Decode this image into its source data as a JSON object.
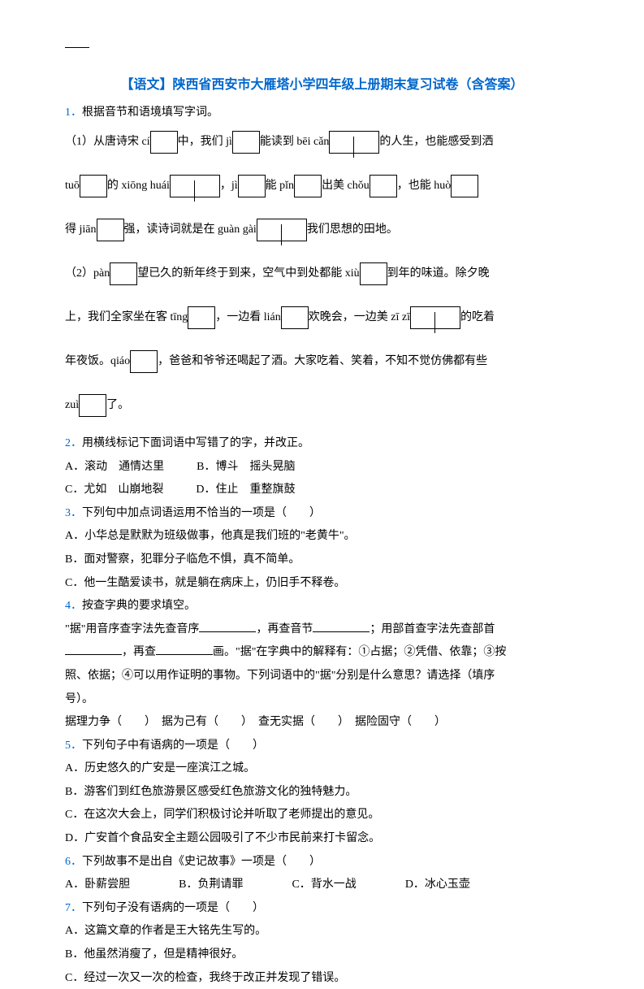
{
  "title": "【语文】陕西省西安市大雁塔小学四年级上册期末复习试卷（含答案）",
  "q1": {
    "num": "1．",
    "stem": "根据音节和语境填写字词。",
    "p1a": "（1）从唐诗宋 cí",
    "p1b": "中，我们 jì",
    "p1c": "能读到 bēi cǎn",
    "p1d": "的人生，也能感受到洒",
    "p2a": "tuō",
    "p2b": "的 xiōng huái",
    "p2c": "，jì",
    "p2d": "能 pǐn",
    "p2e": "出美 chǒu",
    "p2f": "，也能 huò",
    "p3a": "得 jiān",
    "p3b": "强，读诗词就是在 guàn gài",
    "p3c": "我们思想的田地。",
    "p4a": "（2）pàn",
    "p4b": "望已久的新年终于到来，空气中到处都能 xiù",
    "p4c": "到年的味道。除夕晚",
    "p5a": "上，我们全家坐在客 tīng",
    "p5b": "，一边看 lián",
    "p5c": "欢晚会，一边美 zī zī",
    "p5d": "的吃着",
    "p6a": "年夜饭。qiáo",
    "p6b": "，爸爸和爷爷还喝起了酒。大家吃着、笑着，不知不觉仿佛都有些",
    "p7a": "zuì",
    "p7b": "了。"
  },
  "q2": {
    "num": "2．",
    "stem": "用横线标记下面词语中写错了的字，并改正。",
    "a": "A．滚动　通情达里",
    "b": "B．博斗　摇头晃脑",
    "c": "C．尤如　山崩地裂",
    "d": "D．住止　重整旗鼓"
  },
  "q3": {
    "num": "3．",
    "stem": "下列句中加点词语运用不恰当的一项是（　　）",
    "a": "A．小华总是默默为班级做事，他真是我们班的\"老黄牛\"。",
    "b": "B．面对警察，犯罪分子临危不惧，真不简单。",
    "c": "C．他一生酷爱读书，就是躺在病床上，仍旧手不释卷。"
  },
  "q4": {
    "num": "4．",
    "stem": "按查字典的要求填空。",
    "l1a": "\"据\"用音序查字法先查音序",
    "l1b": "，再查音节",
    "l1c": "；用部首查字法先查部首",
    "l2a": "，再查",
    "l2b": "画。\"据\"在字典中的解释有：①占据；②凭借、依靠；③按",
    "l3": "照、依据；④可以用作证明的事物。下列词语中的\"据\"分别是什么意思？请选择（填序",
    "l4": "号）。",
    "l5": "据理力争（　　）　据为己有（　　）　查无实据（　　）　据险固守（　　）"
  },
  "q5": {
    "num": "5．",
    "stem": "下列句子中有语病的一项是（　　）",
    "a": "A．历史悠久的广安是一座滨江之城。",
    "b": "B．游客们到红色旅游景区感受红色旅游文化的独特魅力。",
    "c": "C．在这次大会上，同学们积极讨论并听取了老师提出的意见。",
    "d": "D．广安首个食品安全主题公园吸引了不少市民前来打卡留念。"
  },
  "q6": {
    "num": "6．",
    "stem": "下列故事不是出自《史记故事》一项是（　　）",
    "a": "A．卧薪尝胆",
    "b": "B．负荆请罪",
    "c": "C．背水一战",
    "d": "D．冰心玉壶"
  },
  "q7": {
    "num": "7．",
    "stem": "下列句子没有语病的一项是（　　）",
    "a": "A．这篇文章的作者是王大铭先生写的。",
    "b": "B．他虽然消瘦了，但是精神很好。",
    "c": "C．经过一次又一次的检查，我终于改正并发现了错误。"
  }
}
